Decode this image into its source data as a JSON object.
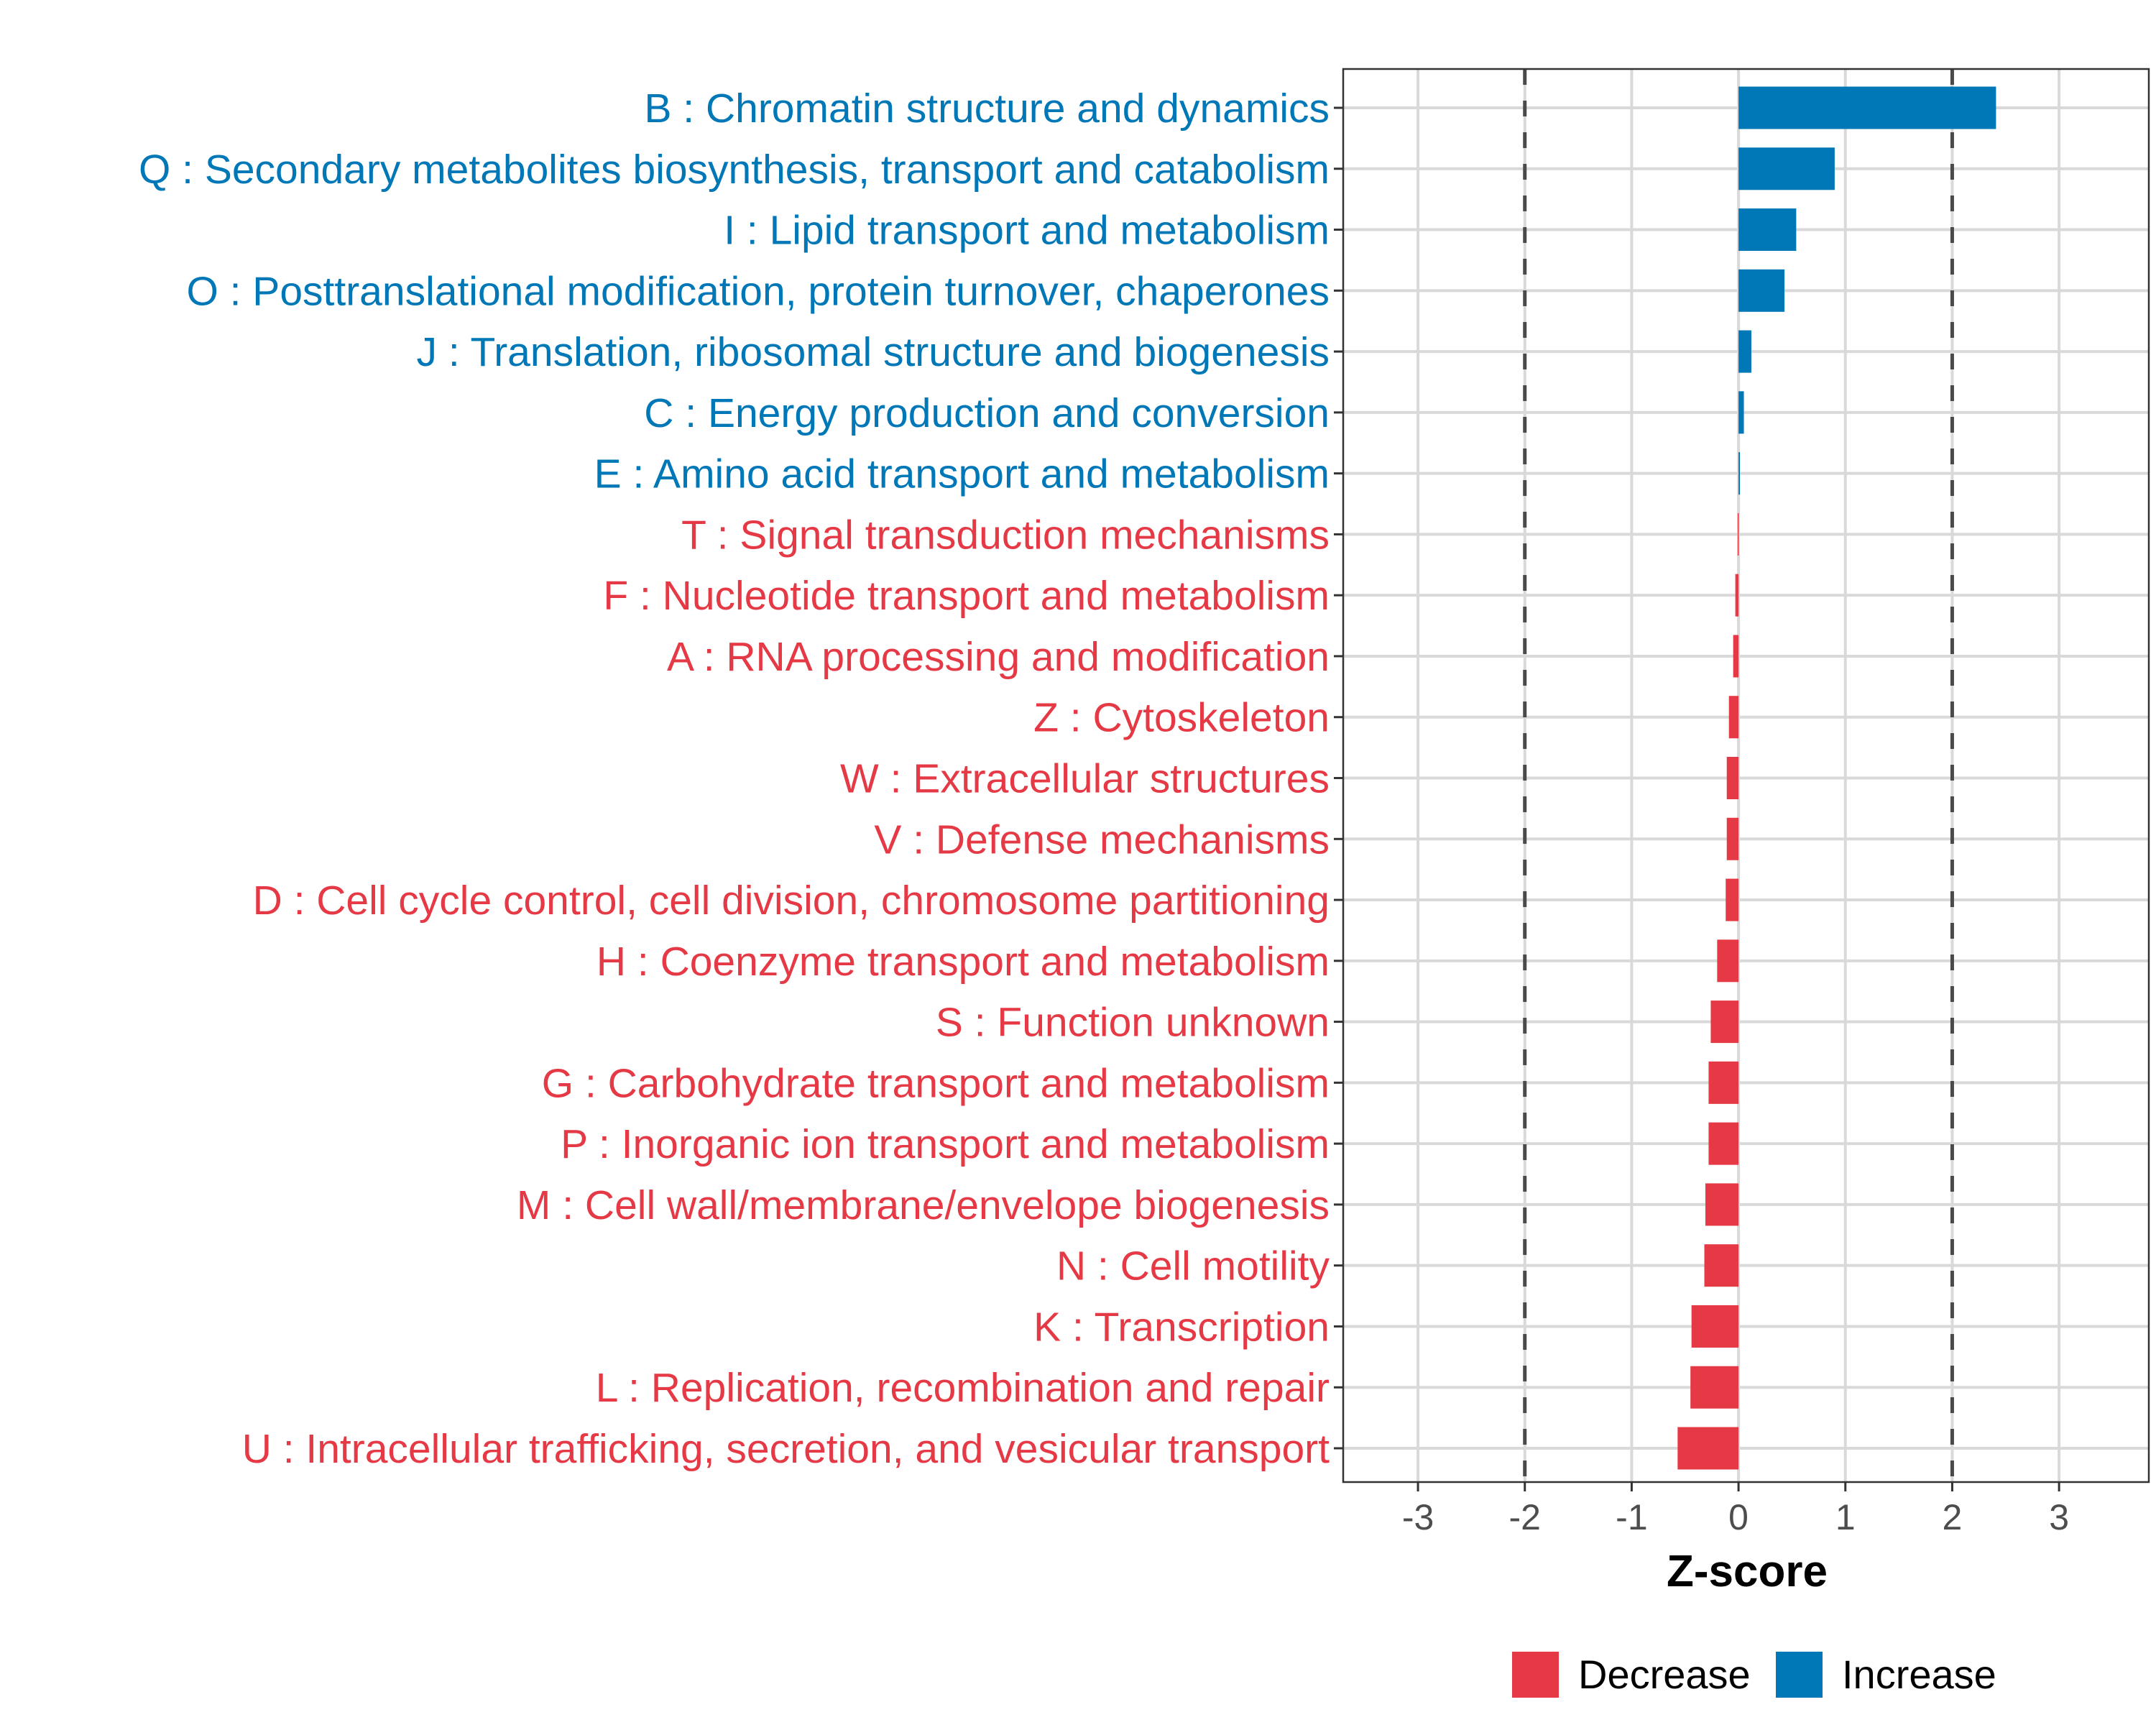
{
  "chart_data": {
    "type": "bar",
    "orientation": "horizontal",
    "title": "",
    "xlabel": "Z-score",
    "ylabel": "",
    "xlim": [
      -3.7,
      3.84
    ],
    "xticks": [
      -3,
      -2,
      -1,
      0,
      1,
      2,
      3
    ],
    "xtick_labels": [
      "-3",
      "-2",
      "-1",
      "0",
      "1",
      "2",
      "3"
    ],
    "reference_lines": [
      -2,
      2
    ],
    "grid": true,
    "legend_position": "bottom",
    "legend": [
      {
        "label": "Decrease",
        "color": "#E63946"
      },
      {
        "label": "Increase",
        "color": "#0077B6"
      }
    ],
    "categories": [
      "B : Chromatin structure and dynamics",
      "Q : Secondary metabolites biosynthesis, transport and catabolism",
      "I : Lipid transport and metabolism",
      "O : Posttranslational modification, protein turnover, chaperones",
      "J : Translation, ribosomal structure and biogenesis",
      "C : Energy production and conversion",
      "E : Amino acid transport and metabolism",
      "T : Signal transduction mechanisms",
      "F : Nucleotide transport and metabolism",
      "A : RNA processing and modification",
      "Z : Cytoskeleton",
      "W : Extracellular structures",
      "V : Defense mechanisms",
      "D : Cell cycle control, cell division, chromosome partitioning",
      "H : Coenzyme transport and metabolism",
      "S : Function unknown",
      "G : Carbohydrate transport and metabolism",
      "P : Inorganic ion transport and metabolism",
      "M : Cell wall/membrane/envelope biogenesis",
      "N : Cell motility",
      "K : Transcription",
      "L : Replication, recombination and repair",
      "U : Intracellular trafficking, secretion, and vesicular transport"
    ],
    "values": [
      2.41,
      0.9,
      0.54,
      0.43,
      0.12,
      0.05,
      0.013,
      -0.008,
      -0.03,
      -0.05,
      -0.09,
      -0.11,
      -0.11,
      -0.12,
      -0.2,
      -0.26,
      -0.28,
      -0.28,
      -0.31,
      -0.32,
      -0.44,
      -0.45,
      -0.57
    ]
  }
}
